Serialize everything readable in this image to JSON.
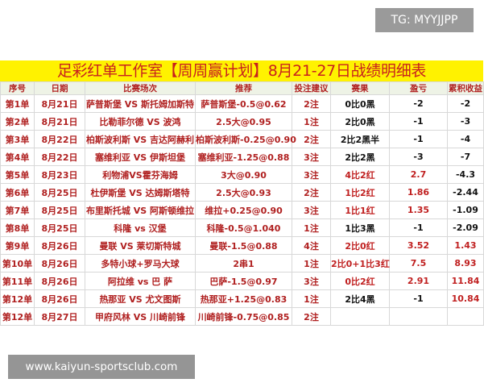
{
  "watermark_top": "TG: MYYJJPP",
  "title": "足彩红单工作室【周周赢计划】8月21-27日战绩明细表",
  "headers": [
    "序号",
    "日期",
    "比赛场次",
    "推荐",
    "投注建议",
    "赛果",
    "盈亏",
    "累积收益"
  ],
  "rows": [
    [
      "第1单",
      "8月21日",
      "萨普斯堡 VS 斯托姆加斯特",
      "萨普斯堡-0.5@0.62",
      "2注",
      "0比0黑",
      "-2",
      "-2"
    ],
    [
      "第2单",
      "8月21日",
      "比勒菲尔德 VS 波鸿",
      "2.5大@0.95",
      "1注",
      "2比0黑",
      "-1",
      "-3"
    ],
    [
      "第3单",
      "8月22日",
      "柏斯波利斯 VS 吉达阿赫利",
      "柏斯波利斯-0.25@0.90",
      "2注",
      "2比2黑半",
      "-1",
      "-4"
    ],
    [
      "第4单",
      "8月22日",
      "塞维利亚 VS 伊斯坦堡",
      "塞维利亚-1.25@0.88",
      "3注",
      "2比2黑",
      "-3",
      "-7"
    ],
    [
      "第5单",
      "8月23日",
      "利物浦VS霍芬海姆",
      "3大@0.90",
      "3注",
      "4比2红",
      "2.7",
      "-4.3"
    ],
    [
      "第6单",
      "8月25日",
      "杜伊斯堡  VS  达姆斯塔特",
      "2.5大@0.93",
      "2注",
      "1比2红",
      "1.86",
      "-2.44"
    ],
    [
      "第7单",
      "8月25日",
      "布里斯托城 VS 阿斯顿维拉",
      "维拉+0.25@0.90",
      "3注",
      "1比1红",
      "1.35",
      "-1.09"
    ],
    [
      "第8单",
      "8月25日",
      "科隆 vs 汉堡",
      "科隆-0.5@1.040",
      "1注",
      "1比3黑",
      "-1",
      "-2.09"
    ],
    [
      "第9单",
      "8月26日",
      "曼联 VS 莱切斯特城",
      "曼联-1.5@0.88",
      "4注",
      "2比0红",
      "3.52",
      "1.43"
    ],
    [
      "第10单",
      "8月26日",
      "多特小球+罗马大球",
      "2串1",
      "1注",
      "2比0+1比3红",
      "7.5",
      "8.93"
    ],
    [
      "第11单",
      "8月26日",
      "阿拉维 vs 巴 萨",
      "巴萨-1.5@0.97",
      "3注",
      "0比2红",
      "2.91",
      "11.84"
    ],
    [
      "第12单",
      "8月26日",
      "热那亚 VS 尤文图斯",
      "热那亚+1.25@0.83",
      "1注",
      "2比4黑",
      "-1",
      "10.84"
    ],
    [
      "第12单",
      "8月27日",
      "甲府风林 VS 川崎前锋",
      "川崎前锋-0.75@0.85",
      "2注",
      "",
      "",
      ""
    ]
  ],
  "watermark_bottom": "www.kaiyun-sportsclub.com",
  "colors": {
    "title_bg": "#fff200",
    "title_text": "#c8201e",
    "win": "#c02020",
    "loss": "#111111"
  }
}
